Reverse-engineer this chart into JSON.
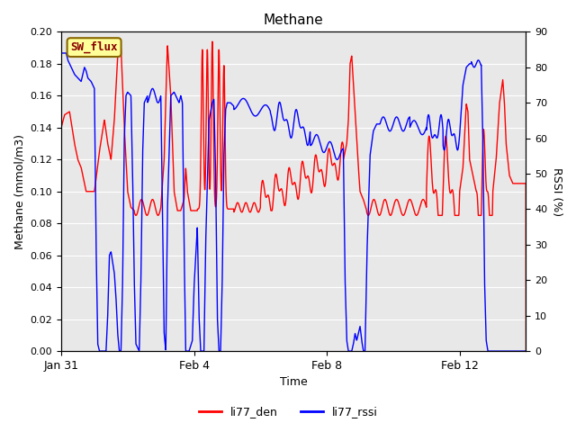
{
  "title": "Methane",
  "xlabel": "Time",
  "ylabel_left": "Methane (mmol/m3)",
  "ylabel_right": "RSSI (%)",
  "ylim_left": [
    0.0,
    0.2
  ],
  "ylim_right": [
    0,
    90
  ],
  "yticks_left": [
    0.0,
    0.02,
    0.04,
    0.06,
    0.08,
    0.1,
    0.12,
    0.14,
    0.16,
    0.18,
    0.2
  ],
  "yticks_right": [
    0,
    10,
    20,
    30,
    40,
    50,
    60,
    70,
    80,
    90
  ],
  "xtick_positions": [
    0,
    4,
    8,
    12
  ],
  "xtick_labels": [
    "Jan 31",
    "Feb 4",
    "Feb 8",
    "Feb 12"
  ],
  "xlim": [
    0,
    14
  ],
  "legend_label": "SW_flux",
  "line1_label": "li77_den",
  "line2_label": "li77_rssi",
  "line1_color": "#ff0000",
  "line2_color": "#0000ff",
  "bg_color": "#e8e8e8",
  "fig_bg_color": "#ffffff",
  "legend_facecolor": "#ffff99",
  "legend_edgecolor": "#886600",
  "legend_text_color": "#880000",
  "line_width": 1.0
}
